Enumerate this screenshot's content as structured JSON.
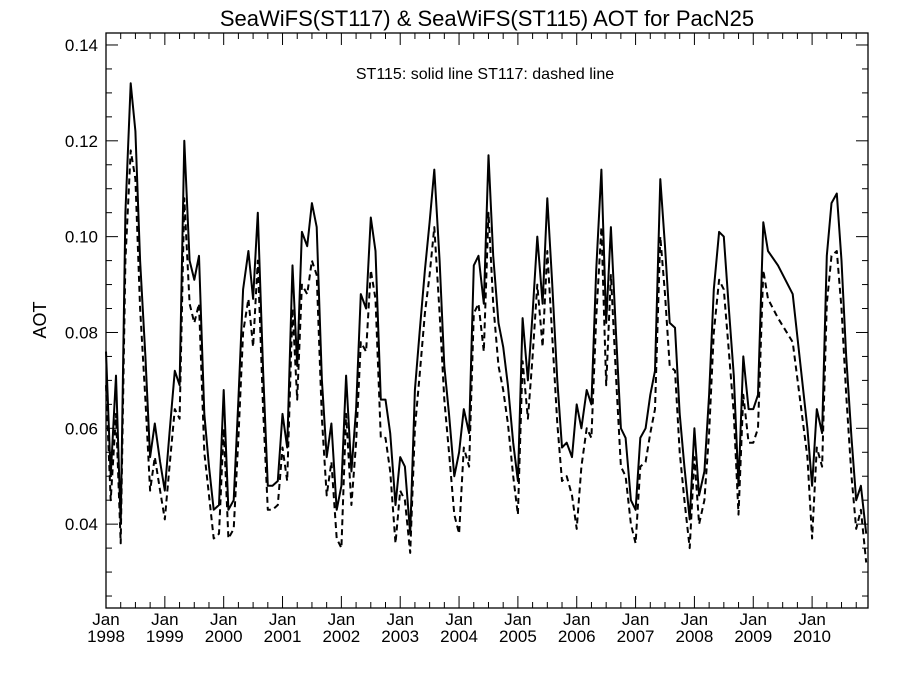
{
  "chart_data": {
    "type": "line",
    "title": "SeaWiFS(ST117) & SeaWiFS(ST115)  AOT for PacN25",
    "annotation": "ST115: solid line   ST117: dashed line",
    "xlabel": "",
    "ylabel": "AOT",
    "x_unit": "year_fraction",
    "xlim": [
      1998.0,
      2010.95
    ],
    "ylim": [
      0.0225,
      0.1425
    ],
    "y_ticks": [
      "0.04",
      "0.06",
      "0.08",
      "0.10",
      "0.12",
      "0.14"
    ],
    "x_ticks": [
      {
        "month": "Jan",
        "year": "1998"
      },
      {
        "month": "Jan",
        "year": "1999"
      },
      {
        "month": "Jan",
        "year": "2000"
      },
      {
        "month": "Jan",
        "year": "2001"
      },
      {
        "month": "Jan",
        "year": "2002"
      },
      {
        "month": "Jan",
        "year": "2003"
      },
      {
        "month": "Jan",
        "year": "2004"
      },
      {
        "month": "Jan",
        "year": "2005"
      },
      {
        "month": "Jan",
        "year": "2006"
      },
      {
        "month": "Jan",
        "year": "2007"
      },
      {
        "month": "Jan",
        "year": "2008"
      },
      {
        "month": "Jan",
        "year": "2009"
      },
      {
        "month": "Jan",
        "year": "2010"
      }
    ],
    "grid": false,
    "series": [
      {
        "name": "ST115",
        "style": "solid",
        "color": "#000000",
        "x": [
          1998.0,
          1998.08,
          1998.17,
          1998.25,
          1998.33,
          1998.42,
          1998.5,
          1998.58,
          1998.67,
          1998.75,
          1998.83,
          1998.92,
          1999.0,
          1999.08,
          1999.17,
          1999.25,
          1999.33,
          1999.42,
          1999.5,
          1999.58,
          1999.67,
          1999.75,
          1999.83,
          1999.92,
          2000.0,
          2000.08,
          2000.17,
          2000.25,
          2000.33,
          2000.42,
          2000.5,
          2000.58,
          2000.67,
          2000.75,
          2000.83,
          2000.92,
          2001.0,
          2001.08,
          2001.17,
          2001.25,
          2001.33,
          2001.42,
          2001.5,
          2001.58,
          2001.67,
          2001.75,
          2001.83,
          2001.92,
          2002.0,
          2002.08,
          2002.17,
          2002.25,
          2002.33,
          2002.42,
          2002.5,
          2002.58,
          2002.67,
          2002.75,
          2002.83,
          2002.92,
          2003.0,
          2003.08,
          2003.17,
          2003.25,
          2003.33,
          2003.42,
          2003.5,
          2003.58,
          2003.67,
          2003.75,
          2003.83,
          2003.92,
          2004.0,
          2004.08,
          2004.17,
          2004.25,
          2004.33,
          2004.42,
          2004.5,
          2004.58,
          2004.67,
          2004.75,
          2004.83,
          2004.92,
          2005.0,
          2005.08,
          2005.17,
          2005.25,
          2005.33,
          2005.42,
          2005.5,
          2005.58,
          2005.67,
          2005.75,
          2005.83,
          2005.92,
          2006.0,
          2006.08,
          2006.17,
          2006.25,
          2006.33,
          2006.42,
          2006.5,
          2006.58,
          2006.67,
          2006.75,
          2006.83,
          2006.92,
          2007.0,
          2007.08,
          2007.17,
          2007.25,
          2007.33,
          2007.42,
          2007.5,
          2007.58,
          2007.67,
          2007.75,
          2007.83,
          2007.92,
          2008.0,
          2008.08,
          2008.17,
          2008.25,
          2008.33,
          2008.42,
          2008.5,
          2008.58,
          2008.67,
          2008.75,
          2008.83,
          2008.92,
          2009.0,
          2009.08,
          2009.17,
          2009.25,
          2009.42,
          2009.67,
          2009.92,
          2010.0,
          2010.08,
          2010.17,
          2010.25,
          2010.33,
          2010.42,
          2010.5,
          2010.58,
          2010.67,
          2010.75,
          2010.83,
          2010.92
        ],
        "y": [
          0.076,
          0.05,
          0.071,
          0.04,
          0.105,
          0.132,
          0.122,
          0.095,
          0.075,
          0.054,
          0.061,
          0.053,
          0.047,
          0.059,
          0.072,
          0.069,
          0.12,
          0.095,
          0.091,
          0.096,
          0.063,
          0.052,
          0.043,
          0.044,
          0.068,
          0.043,
          0.045,
          0.066,
          0.089,
          0.097,
          0.087,
          0.105,
          0.072,
          0.048,
          0.048,
          0.049,
          0.063,
          0.056,
          0.094,
          0.073,
          0.101,
          0.098,
          0.107,
          0.102,
          0.07,
          0.054,
          0.061,
          0.043,
          0.048,
          0.071,
          0.051,
          0.064,
          0.088,
          0.085,
          0.104,
          0.097,
          0.066,
          0.066,
          0.059,
          0.044,
          0.054,
          0.052,
          0.038,
          0.068,
          0.08,
          0.093,
          0.103,
          0.114,
          0.095,
          0.073,
          0.063,
          0.05,
          0.055,
          0.064,
          0.059,
          0.094,
          0.096,
          0.086,
          0.117,
          0.096,
          0.082,
          0.077,
          0.069,
          0.057,
          0.049,
          0.083,
          0.07,
          0.084,
          0.1,
          0.086,
          0.108,
          0.091,
          0.07,
          0.056,
          0.057,
          0.054,
          0.065,
          0.06,
          0.068,
          0.065,
          0.093,
          0.114,
          0.082,
          0.102,
          0.079,
          0.06,
          0.058,
          0.045,
          0.043,
          0.058,
          0.06,
          0.067,
          0.072,
          0.112,
          0.098,
          0.082,
          0.081,
          0.063,
          0.052,
          0.041,
          0.06,
          0.046,
          0.051,
          0.067,
          0.089,
          0.101,
          0.1,
          0.086,
          0.071,
          0.048,
          0.075,
          0.064,
          0.064,
          0.067,
          0.103,
          0.097,
          0.094,
          0.088,
          0.06,
          0.048,
          0.064,
          0.059,
          0.096,
          0.107,
          0.109,
          0.095,
          0.075,
          0.058,
          0.045,
          0.048,
          0.038
        ]
      },
      {
        "name": "ST117",
        "style": "dashed",
        "color": "#000000",
        "x": [
          1998.0,
          1998.08,
          1998.17,
          1998.25,
          1998.33,
          1998.42,
          1998.5,
          1998.58,
          1998.67,
          1998.75,
          1998.83,
          1998.92,
          1999.0,
          1999.08,
          1999.17,
          1999.25,
          1999.33,
          1999.42,
          1999.5,
          1999.58,
          1999.67,
          1999.75,
          1999.83,
          1999.92,
          2000.0,
          2000.08,
          2000.17,
          2000.25,
          2000.33,
          2000.42,
          2000.5,
          2000.58,
          2000.67,
          2000.75,
          2000.83,
          2000.92,
          2001.0,
          2001.08,
          2001.17,
          2001.25,
          2001.33,
          2001.42,
          2001.5,
          2001.58,
          2001.67,
          2001.75,
          2001.83,
          2001.92,
          2002.0,
          2002.08,
          2002.17,
          2002.25,
          2002.33,
          2002.42,
          2002.5,
          2002.58,
          2002.67,
          2002.75,
          2002.83,
          2002.92,
          2003.0,
          2003.08,
          2003.17,
          2003.25,
          2003.33,
          2003.42,
          2003.5,
          2003.58,
          2003.67,
          2003.75,
          2003.83,
          2003.92,
          2004.0,
          2004.08,
          2004.17,
          2004.25,
          2004.33,
          2004.42,
          2004.5,
          2004.58,
          2004.67,
          2004.75,
          2004.83,
          2004.92,
          2005.0,
          2005.08,
          2005.17,
          2005.25,
          2005.33,
          2005.42,
          2005.5,
          2005.58,
          2005.67,
          2005.75,
          2005.83,
          2005.92,
          2006.0,
          2006.08,
          2006.17,
          2006.25,
          2006.33,
          2006.42,
          2006.5,
          2006.58,
          2006.67,
          2006.75,
          2006.83,
          2006.92,
          2007.0,
          2007.08,
          2007.17,
          2007.25,
          2007.33,
          2007.42,
          2007.5,
          2007.58,
          2007.67,
          2007.75,
          2007.83,
          2007.92,
          2008.0,
          2008.08,
          2008.17,
          2008.25,
          2008.33,
          2008.42,
          2008.5,
          2008.58,
          2008.67,
          2008.75,
          2008.83,
          2008.92,
          2009.0,
          2009.08,
          2009.17,
          2009.25,
          2009.42,
          2009.67,
          2009.92,
          2010.0,
          2010.08,
          2010.17,
          2010.25,
          2010.33,
          2010.42,
          2010.5,
          2010.58,
          2010.67,
          2010.75,
          2010.83,
          2010.92
        ],
        "y": [
          0.069,
          0.045,
          0.063,
          0.036,
          0.095,
          0.118,
          0.112,
          0.085,
          0.066,
          0.047,
          0.054,
          0.047,
          0.041,
          0.052,
          0.064,
          0.062,
          0.108,
          0.086,
          0.082,
          0.086,
          0.055,
          0.046,
          0.037,
          0.038,
          0.06,
          0.037,
          0.039,
          0.058,
          0.08,
          0.087,
          0.077,
          0.095,
          0.064,
          0.043,
          0.043,
          0.044,
          0.056,
          0.049,
          0.085,
          0.066,
          0.09,
          0.088,
          0.095,
          0.092,
          0.062,
          0.046,
          0.053,
          0.037,
          0.035,
          0.063,
          0.044,
          0.057,
          0.078,
          0.076,
          0.093,
          0.087,
          0.058,
          0.058,
          0.051,
          0.036,
          0.047,
          0.045,
          0.034,
          0.06,
          0.071,
          0.084,
          0.092,
          0.102,
          0.084,
          0.066,
          0.055,
          0.042,
          0.038,
          0.056,
          0.052,
          0.084,
          0.086,
          0.076,
          0.105,
          0.086,
          0.073,
          0.068,
          0.061,
          0.05,
          0.042,
          0.074,
          0.062,
          0.075,
          0.09,
          0.077,
          0.097,
          0.08,
          0.061,
          0.049,
          0.05,
          0.046,
          0.039,
          0.052,
          0.06,
          0.058,
          0.083,
          0.102,
          0.069,
          0.092,
          0.07,
          0.052,
          0.05,
          0.04,
          0.036,
          0.052,
          0.053,
          0.059,
          0.064,
          0.1,
          0.088,
          0.073,
          0.072,
          0.055,
          0.045,
          0.035,
          0.054,
          0.04,
          0.045,
          0.059,
          0.08,
          0.091,
          0.089,
          0.077,
          0.063,
          0.042,
          0.067,
          0.057,
          0.057,
          0.06,
          0.093,
          0.087,
          0.083,
          0.078,
          0.054,
          0.037,
          0.056,
          0.052,
          0.086,
          0.096,
          0.097,
          0.085,
          0.067,
          0.05,
          0.039,
          0.043,
          0.032
        ]
      }
    ]
  }
}
